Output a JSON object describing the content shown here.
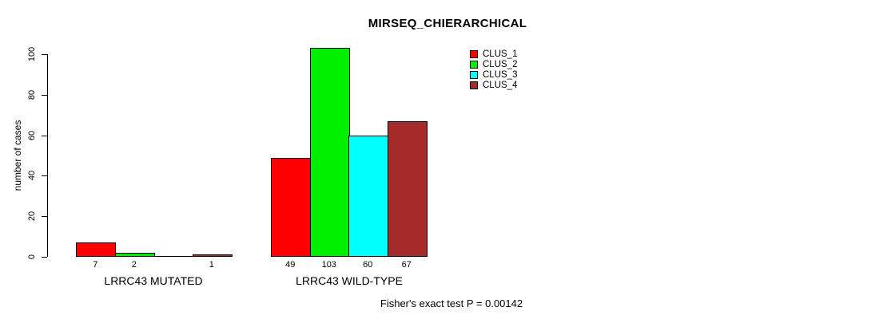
{
  "title": "MIRSEQ_CHIERARCHICAL",
  "footer": "Fisher's exact test P = 0.00142",
  "chart_data": {
    "type": "bar",
    "title": "MIRSEQ_CHIERARCHICAL",
    "xlabel": "",
    "ylabel": "number of cases",
    "ylim": [
      0,
      103
    ],
    "yticks": [
      0,
      20,
      40,
      60,
      80,
      100
    ],
    "grid": false,
    "legend_position": "top-right",
    "series": [
      {
        "name": "CLUS_1",
        "color": "#FF0000"
      },
      {
        "name": "CLUS_2",
        "color": "#00EE00"
      },
      {
        "name": "CLUS_3",
        "color": "#00FFFF"
      },
      {
        "name": "CLUS_4",
        "color": "#A52A2A"
      }
    ],
    "groups": [
      {
        "label": "LRRC43 MUTATED",
        "values": [
          7,
          2,
          0,
          1
        ],
        "value_labels": [
          "7",
          "2",
          "",
          "1"
        ]
      },
      {
        "label": "LRRC43 WILD-TYPE",
        "values": [
          49,
          103,
          60,
          67
        ],
        "value_labels": [
          "49",
          "103",
          "60",
          "67"
        ]
      }
    ],
    "annotation": "Fisher's exact test P = 0.00142"
  }
}
